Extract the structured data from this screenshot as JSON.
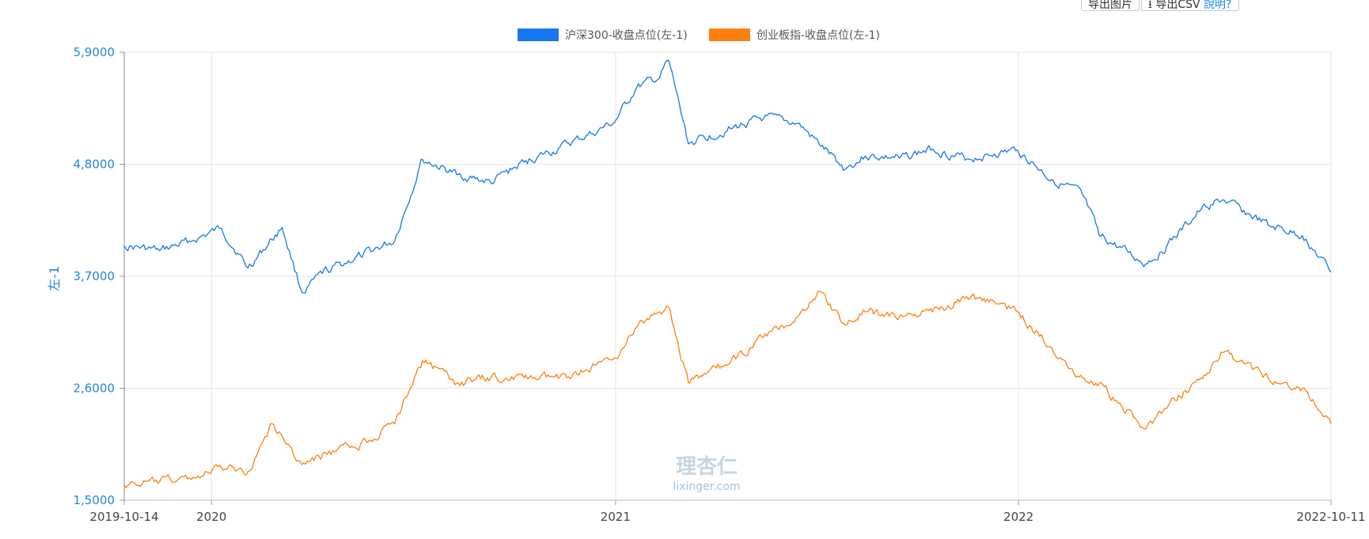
{
  "toolbar": {
    "export_image_label": "导出图片",
    "export_csv_label": "导出CSV",
    "help_label": "說明?"
  },
  "watermark": {
    "name": "理杏仁",
    "site": "lixinger.com"
  },
  "colors": {
    "series1": "#1677f0",
    "series2": "#ff7f0e",
    "axis_text": "#1e88e5",
    "grid": "#e6e6e6"
  },
  "chart_data": {
    "type": "line",
    "title": "",
    "xlabel": "",
    "ylabel": "左-1",
    "ylim": [
      1.5,
      5.9
    ],
    "yticks": [
      1.5,
      2.6,
      3.7,
      4.8,
      5.9
    ],
    "ytick_labels": [
      "1,5000",
      "2,6000",
      "3,7000",
      "4,8000",
      "5,9000"
    ],
    "xlim": [
      "2019-10-14",
      "2022-10-11"
    ],
    "xticks": [
      {
        "date": "2019-10-14",
        "label": "2019-10-14"
      },
      {
        "date": "2020-01-01",
        "label": "2020"
      },
      {
        "date": "2021-01-01",
        "label": "2021"
      },
      {
        "date": "2022-01-01",
        "label": "2022"
      },
      {
        "date": "2022-10-11",
        "label": "2022-10-11"
      }
    ],
    "grid": true,
    "legend_position": "top-center",
    "series": [
      {
        "name": "沪深300-收盘点位(左-1)",
        "color": "#1677f0",
        "x": [
          "2019-10-14",
          "2019-11-15",
          "2019-12-15",
          "2020-01-10",
          "2020-02-03",
          "2020-03-05",
          "2020-03-23",
          "2020-04-15",
          "2020-05-15",
          "2020-06-15",
          "2020-07-06",
          "2020-07-10",
          "2020-08-10",
          "2020-09-10",
          "2020-10-10",
          "2020-11-10",
          "2020-12-10",
          "2020-12-31",
          "2021-01-20",
          "2021-02-10",
          "2021-02-18",
          "2021-03-08",
          "2021-04-15",
          "2021-05-15",
          "2021-06-15",
          "2021-07-28",
          "2021-08-15",
          "2021-09-15",
          "2021-10-15",
          "2021-11-15",
          "2021-12-10",
          "2021-12-31",
          "2022-01-31",
          "2022-02-28",
          "2022-03-15",
          "2022-04-26",
          "2022-05-15",
          "2022-06-15",
          "2022-07-05",
          "2022-08-15",
          "2022-09-15",
          "2022-10-11"
        ],
        "values": [
          4.0,
          3.95,
          4.05,
          4.17,
          3.78,
          4.18,
          3.54,
          3.76,
          3.9,
          4.05,
          4.72,
          4.85,
          4.7,
          4.62,
          4.82,
          4.95,
          5.1,
          5.21,
          5.55,
          5.65,
          5.82,
          5.0,
          5.15,
          5.25,
          5.2,
          4.75,
          4.88,
          4.86,
          4.95,
          4.85,
          4.9,
          4.94,
          4.65,
          4.5,
          4.1,
          3.82,
          3.99,
          4.35,
          4.45,
          4.2,
          4.1,
          3.74
        ]
      },
      {
        "name": "创业板指-收盘点位(左-1)",
        "color": "#ff7f0e",
        "x": [
          "2019-10-14",
          "2019-11-15",
          "2019-12-15",
          "2020-01-10",
          "2020-02-03",
          "2020-02-25",
          "2020-03-23",
          "2020-04-15",
          "2020-05-15",
          "2020-06-15",
          "2020-07-06",
          "2020-07-10",
          "2020-08-10",
          "2020-09-10",
          "2020-10-10",
          "2020-11-10",
          "2020-12-10",
          "2020-12-31",
          "2021-01-20",
          "2021-02-10",
          "2021-02-18",
          "2021-03-08",
          "2021-04-15",
          "2021-05-15",
          "2021-06-15",
          "2021-07-05",
          "2021-07-28",
          "2021-08-15",
          "2021-09-15",
          "2021-10-15",
          "2021-11-15",
          "2021-12-10",
          "2021-12-31",
          "2022-01-31",
          "2022-02-28",
          "2022-03-15",
          "2022-04-26",
          "2022-05-15",
          "2022-06-15",
          "2022-07-05",
          "2022-08-15",
          "2022-09-15",
          "2022-10-11"
        ],
        "values": [
          1.65,
          1.68,
          1.72,
          1.82,
          1.78,
          2.25,
          1.85,
          1.95,
          2.05,
          2.25,
          2.8,
          2.87,
          2.65,
          2.7,
          2.7,
          2.7,
          2.8,
          2.9,
          3.2,
          3.35,
          3.4,
          2.65,
          2.85,
          3.1,
          3.3,
          3.55,
          3.22,
          3.35,
          3.3,
          3.35,
          3.5,
          3.45,
          3.35,
          3.0,
          2.7,
          2.65,
          2.2,
          2.4,
          2.7,
          2.95,
          2.7,
          2.6,
          2.25
        ]
      }
    ]
  }
}
